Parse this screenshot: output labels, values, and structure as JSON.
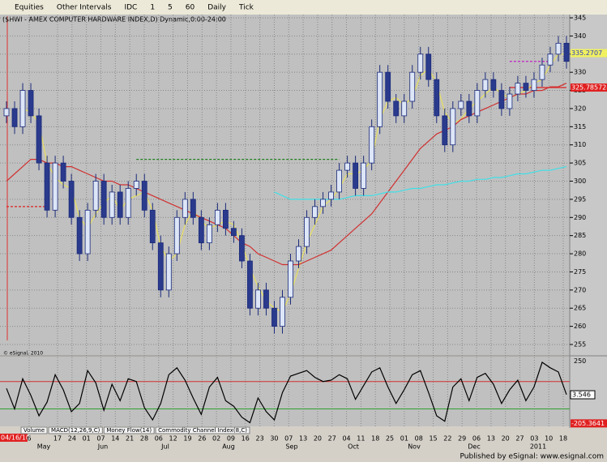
{
  "toolbar": {
    "items": [
      "Equities",
      "Other Intervals",
      "IDC",
      "1",
      "5",
      "60",
      "Daily",
      "Tick"
    ]
  },
  "chart_data": {
    "type": "candlestick",
    "title": "($HWI - AMEX COMPUTER HARDWARE INDEX,D) Dynamic,0:00-24:00",
    "open": [
      318,
      320,
      315,
      325,
      318,
      305,
      292,
      305,
      300,
      290,
      280,
      292,
      300,
      290,
      297,
      290,
      298,
      300,
      292,
      283,
      270,
      280,
      290,
      295,
      290,
      283,
      288,
      292,
      287,
      285,
      278,
      265,
      270,
      265,
      260,
      268,
      278,
      282,
      290,
      293,
      295,
      297,
      303,
      305,
      298,
      305,
      315,
      330,
      322,
      318,
      322,
      330,
      335,
      328,
      318,
      310,
      320,
      322,
      318,
      325,
      328,
      325,
      320,
      324,
      327,
      325,
      328,
      332,
      335,
      338
    ],
    "high": [
      322,
      322,
      327,
      327,
      320,
      307,
      307,
      307,
      302,
      292,
      294,
      302,
      302,
      299,
      299,
      300,
      302,
      302,
      294,
      285,
      282,
      292,
      297,
      297,
      292,
      290,
      294,
      294,
      289,
      287,
      280,
      272,
      272,
      267,
      270,
      280,
      284,
      292,
      295,
      297,
      299,
      305,
      307,
      307,
      307,
      317,
      332,
      332,
      324,
      324,
      332,
      337,
      337,
      330,
      320,
      322,
      324,
      324,
      327,
      330,
      330,
      327,
      326,
      329,
      329,
      330,
      334,
      337,
      340,
      340
    ],
    "low": [
      316,
      313,
      313,
      316,
      303,
      290,
      290,
      298,
      288,
      278,
      278,
      290,
      288,
      288,
      288,
      288,
      296,
      290,
      281,
      268,
      268,
      278,
      288,
      288,
      281,
      281,
      286,
      285,
      283,
      276,
      263,
      263,
      263,
      258,
      258,
      266,
      276,
      280,
      288,
      291,
      293,
      295,
      301,
      296,
      296,
      303,
      313,
      320,
      316,
      316,
      320,
      328,
      326,
      316,
      308,
      308,
      318,
      316,
      316,
      323,
      323,
      318,
      318,
      322,
      323,
      323,
      326,
      330,
      333,
      331
    ],
    "close": [
      320,
      315,
      325,
      318,
      305,
      292,
      305,
      300,
      290,
      280,
      292,
      300,
      290,
      297,
      290,
      298,
      300,
      292,
      283,
      270,
      280,
      290,
      295,
      290,
      283,
      288,
      292,
      287,
      285,
      278,
      265,
      270,
      265,
      260,
      268,
      278,
      282,
      290,
      293,
      295,
      297,
      303,
      305,
      298,
      305,
      315,
      330,
      322,
      318,
      322,
      330,
      335,
      328,
      318,
      310,
      320,
      322,
      318,
      325,
      328,
      325,
      320,
      324,
      327,
      325,
      328,
      332,
      335,
      338,
      333
    ],
    "series": [
      {
        "color": "#e8e060",
        "values": [
          null,
          null,
          320,
          319,
          316,
          305,
          301,
          299,
          298,
          290,
          287,
          291,
          294,
          296,
          292,
          295,
          296,
          297,
          292,
          282,
          278,
          280,
          288,
          292,
          289,
          287,
          288,
          289,
          288,
          283,
          276,
          271,
          267,
          265,
          264,
          269,
          276,
          283,
          288,
          293,
          295,
          298,
          302,
          302,
          303,
          306,
          317,
          322,
          323,
          321,
          323,
          329,
          331,
          327,
          319,
          316,
          317,
          320,
          322,
          324,
          326,
          324,
          323,
          324,
          325,
          327,
          328,
          332,
          335,
          335
        ]
      },
      {
        "color": "#d03030",
        "values": [
          300,
          302,
          304,
          306,
          306,
          305,
          305,
          304,
          304,
          303,
          302,
          301,
          300,
          300,
          299,
          299,
          298,
          297,
          296,
          295,
          294,
          293,
          292,
          291,
          290,
          289,
          288,
          287,
          285,
          283,
          282,
          280,
          279,
          278,
          277,
          277,
          277,
          278,
          279,
          280,
          281,
          283,
          285,
          287,
          289,
          291,
          294,
          297,
          300,
          303,
          306,
          309,
          311,
          313,
          314,
          315,
          317,
          318,
          319,
          320,
          321,
          322,
          323,
          324,
          324,
          325,
          325,
          326,
          326,
          327
        ]
      },
      {
        "color": "#40e0e8",
        "values": [
          null,
          null,
          null,
          null,
          null,
          null,
          null,
          null,
          null,
          null,
          null,
          null,
          null,
          null,
          null,
          null,
          null,
          null,
          null,
          null,
          null,
          null,
          null,
          null,
          null,
          null,
          null,
          null,
          null,
          null,
          null,
          null,
          null,
          297,
          296,
          295,
          295,
          295,
          295,
          295,
          295,
          295,
          295.5,
          296,
          296,
          296,
          296.5,
          297,
          297,
          297.5,
          298,
          298,
          298.5,
          299,
          299,
          299.5,
          300,
          300,
          300.5,
          300.5,
          301,
          301,
          301.5,
          302,
          302,
          302.5,
          303,
          303,
          303.5,
          304
        ]
      }
    ],
    "levels": [
      {
        "value": 306,
        "from": 16,
        "to": 41,
        "color": "#208020",
        "dash": true
      },
      {
        "value": 333,
        "from": 62,
        "to": 67,
        "color": "#c020c0",
        "dash": true
      },
      {
        "value": 325.785728,
        "from": 62,
        "to": 69,
        "color": "#e02020",
        "dash": false,
        "label": "325.785728"
      },
      {
        "value": 293,
        "from": 0,
        "to": 5,
        "color": "#e02020",
        "dash": true
      }
    ],
    "last_label": {
      "value": 335.2707,
      "label": "335.2707"
    },
    "ylim": [
      253,
      347
    ],
    "yticks": [
      345,
      340,
      335,
      330,
      325,
      320,
      315,
      310,
      305,
      300,
      295,
      290,
      285,
      280,
      275,
      270,
      265,
      260,
      255
    ],
    "x_start": "04/16/10",
    "x_labels": [
      "6",
      "17",
      "24",
      "01",
      "07",
      "14",
      "21",
      "28",
      "06",
      "12",
      "19",
      "26",
      "02",
      "09",
      "16",
      "23",
      "30",
      "07",
      "13",
      "20",
      "27",
      "04",
      "11",
      "18",
      "25",
      "01",
      "08",
      "15",
      "22",
      "29",
      "06",
      "13",
      "20",
      "27",
      "03",
      "10",
      "18"
    ],
    "months": [
      "May",
      "Jun",
      "Jul",
      "Aug",
      "Sep",
      "Oct",
      "Nov",
      "Dec",
      "2011"
    ],
    "copyright": "© eSignal, 2010"
  },
  "indicator": {
    "type": "line",
    "color": "#000000",
    "values": [
      50,
      -100,
      120,
      0,
      -150,
      -50,
      150,
      40,
      -120,
      -60,
      180,
      90,
      -110,
      80,
      -40,
      120,
      100,
      -90,
      -180,
      -60,
      150,
      200,
      110,
      -20,
      -140,
      60,
      130,
      -40,
      -80,
      -160,
      -200,
      -20,
      -120,
      -180,
      20,
      140,
      160,
      180,
      130,
      100,
      110,
      150,
      120,
      -30,
      70,
      170,
      200,
      60,
      -60,
      40,
      150,
      180,
      20,
      -150,
      -190,
      60,
      120,
      -40,
      130,
      160,
      80,
      -60,
      40,
      110,
      -40,
      60,
      240,
      200,
      170,
      5
    ],
    "ylim": [
      -215,
      258
    ],
    "yticks": [
      250
    ],
    "levels": [
      100,
      -100
    ],
    "level_colors": [
      "#d03030",
      "#30a030"
    ],
    "last_label": {
      "value": 3.546,
      "label": "3.546"
    },
    "min_label": {
      "value": -205.3641,
      "label": "-205.3641"
    }
  },
  "tabs": [
    "Volume",
    "MACD(12,26,9,C)",
    "Money Flow(14)",
    "Commodity Channel Index(8,C)"
  ],
  "footer": "Published by eSignal: www.esignal.com"
}
